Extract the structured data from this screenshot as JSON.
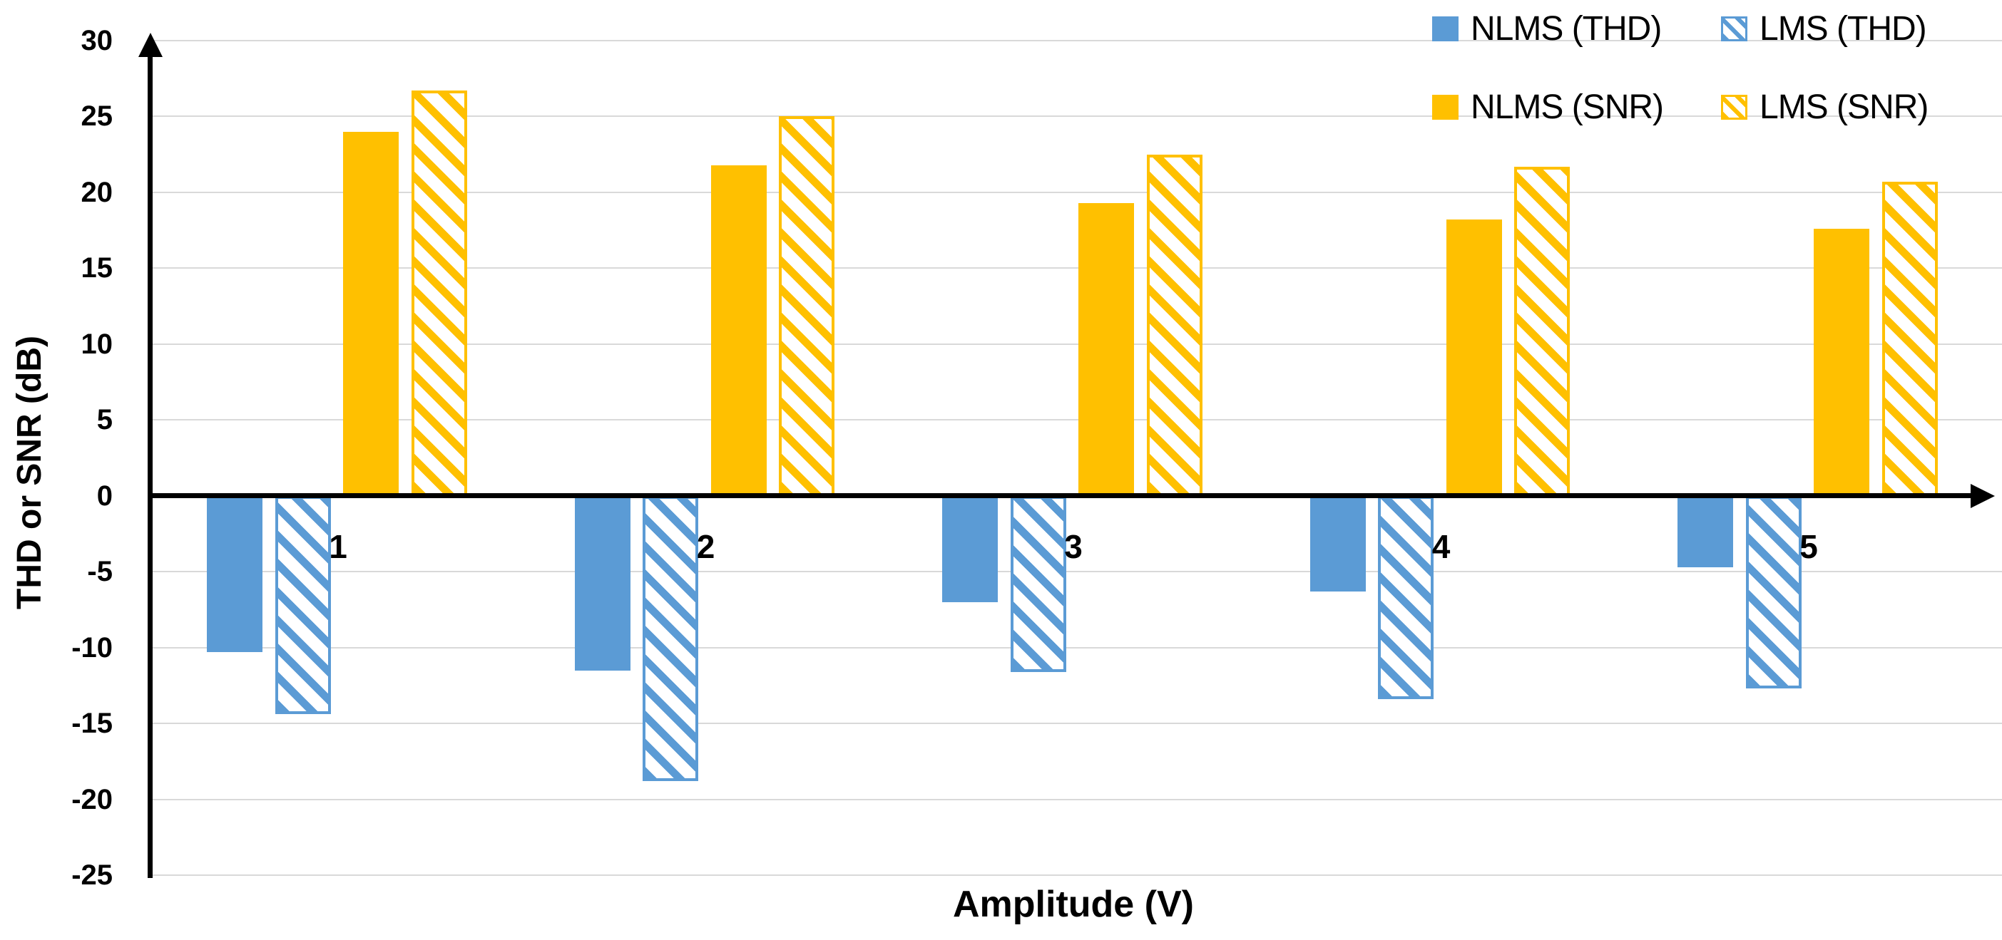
{
  "axes": {
    "y_title": "THD or SNR (dB)",
    "x_title": "Amplitude (V)",
    "y_ticks": [
      30,
      25,
      20,
      15,
      10,
      5,
      0,
      -5,
      -10,
      -15,
      -20,
      -25
    ]
  },
  "legend": {
    "position": "top-right",
    "items": [
      {
        "label": "NLMS (THD)"
      },
      {
        "label": "LMS (THD)"
      },
      {
        "label": "NLMS (SNR)"
      },
      {
        "label": "LMS (SNR)"
      }
    ]
  },
  "colors": {
    "blue": "#5B9BD5",
    "yellow": "#FFC000",
    "gridline": "#D9D9D9",
    "axis": "#000000"
  },
  "chart_data": {
    "type": "bar",
    "title": "",
    "categories": [
      "1",
      "2",
      "3",
      "4",
      "5"
    ],
    "xlabel": "Amplitude (V)",
    "ylabel": "THD or SNR (dB)",
    "ylim": [
      -25,
      30
    ],
    "grid": true,
    "legend_position": "top-right",
    "series": [
      {
        "name": "NLMS (THD)",
        "style": "solid",
        "color": "#5B9BD5",
        "values": [
          -10.3,
          -11.5,
          -7.0,
          -6.3,
          -4.7
        ]
      },
      {
        "name": "LMS (THD)",
        "style": "hatched",
        "color": "#5B9BD5",
        "values": [
          -14.4,
          -18.8,
          -11.6,
          -13.4,
          -12.7
        ]
      },
      {
        "name": "NLMS (SNR)",
        "style": "solid",
        "color": "#FFC000",
        "values": [
          24.0,
          21.8,
          19.3,
          18.2,
          17.6
        ]
      },
      {
        "name": "LMS (SNR)",
        "style": "hatched",
        "color": "#FFC000",
        "values": [
          26.7,
          25.0,
          22.5,
          21.7,
          20.7
        ]
      }
    ]
  }
}
